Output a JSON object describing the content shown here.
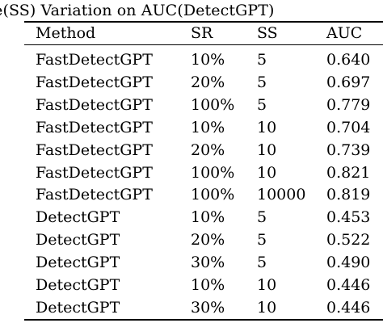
{
  "table": {
    "caption": "ze(SS) Variation on AUC(DetectGPT)",
    "headers": {
      "method": "Method",
      "sr": "SR",
      "ss": "SS",
      "auc": "AUC"
    },
    "rows": [
      {
        "method": "FastDetectGPT",
        "sr": "10%",
        "ss": "5",
        "auc": "0.640"
      },
      {
        "method": "FastDetectGPT",
        "sr": "20%",
        "ss": "5",
        "auc": "0.697"
      },
      {
        "method": "FastDetectGPT",
        "sr": "100%",
        "ss": "5",
        "auc": "0.779"
      },
      {
        "method": "FastDetectGPT",
        "sr": "10%",
        "ss": "10",
        "auc": "0.704"
      },
      {
        "method": "FastDetectGPT",
        "sr": "20%",
        "ss": "10",
        "auc": "0.739"
      },
      {
        "method": "FastDetectGPT",
        "sr": "100%",
        "ss": "10",
        "auc": "0.821"
      },
      {
        "method": "FastDetectGPT",
        "sr": "100%",
        "ss": "10000",
        "auc": "0.819"
      },
      {
        "method": "DetectGPT",
        "sr": "10%",
        "ss": "5",
        "auc": "0.453"
      },
      {
        "method": "DetectGPT",
        "sr": "20%",
        "ss": "5",
        "auc": "0.522"
      },
      {
        "method": "DetectGPT",
        "sr": "30%",
        "ss": "5",
        "auc": "0.490"
      },
      {
        "method": "DetectGPT",
        "sr": "10%",
        "ss": "10",
        "auc": "0.446"
      },
      {
        "method": "DetectGPT",
        "sr": "30%",
        "ss": "10",
        "auc": "0.446"
      }
    ]
  }
}
